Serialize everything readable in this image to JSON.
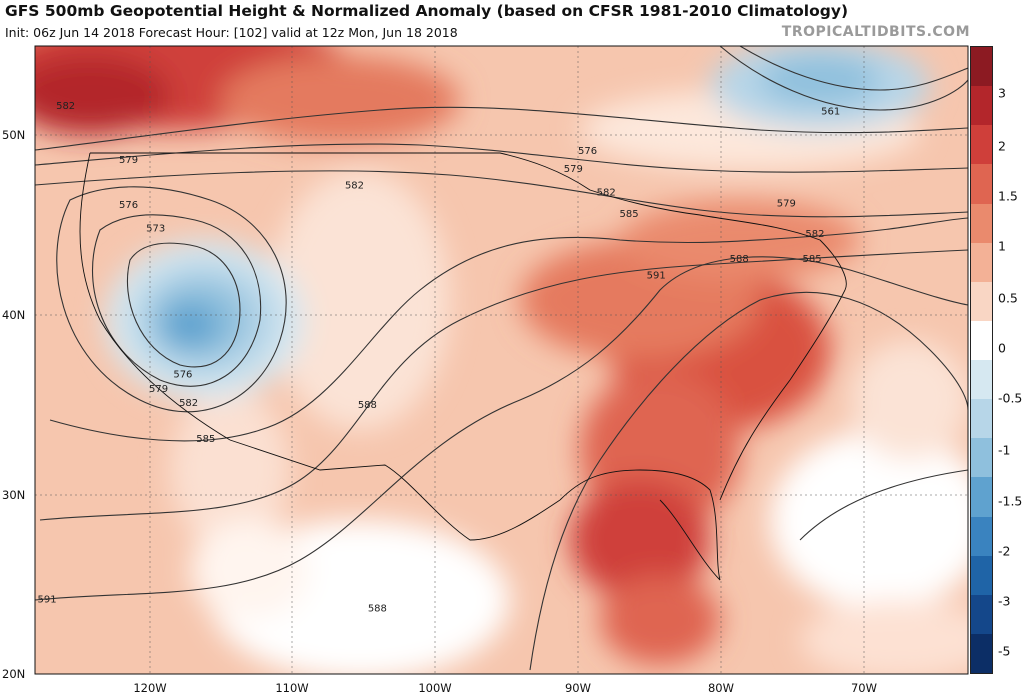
{
  "header": {
    "title": "GFS 500mb Geopotential Height & Normalized Anomaly (based on CFSR 1981-2010 Climatology)",
    "subtitle": "Init: 06z Jun 14 2018   Forecast Hour: [102]   valid at 12z Mon, Jun 18 2018",
    "brand": "TROPICALTIDBITS.COM"
  },
  "colorbar": {
    "ticks": [
      "3",
      "2",
      "1.5",
      "1",
      "0.5",
      "0",
      "-0.5",
      "-1",
      "-1.5",
      "-2",
      "-3",
      "-5"
    ],
    "colors": [
      "#8c1a22",
      "#b3262b",
      "#cf3f3a",
      "#df6551",
      "#ea8a6d",
      "#f3b196",
      "#f9d6c4",
      "#ffffff",
      "#d6e8f1",
      "#b7d6e8",
      "#8fc0dd",
      "#5fa2cf",
      "#3a83bf",
      "#1f64a7",
      "#14478a",
      "#0c2e66"
    ]
  },
  "axes": {
    "lat_labels": [
      "50N",
      "40N",
      "30N",
      "20N"
    ],
    "lon_labels": [
      "120W",
      "110W",
      "100W",
      "90W",
      "80W",
      "70W"
    ]
  },
  "contours": [
    {
      "label": "582",
      "lon": -125.9,
      "lat": 51.6
    },
    {
      "label": "579",
      "lon": -121.5,
      "lat": 48.6
    },
    {
      "label": "576",
      "lon": -121.5,
      "lat": 46.1
    },
    {
      "label": "573",
      "lon": -119.6,
      "lat": 44.8
    },
    {
      "label": "582",
      "lon": -105.7,
      "lat": 47.2
    },
    {
      "label": "576",
      "lon": -117.7,
      "lat": 36.7
    },
    {
      "label": "579",
      "lon": -119.4,
      "lat": 35.9
    },
    {
      "label": "582",
      "lon": -117.3,
      "lat": 35.1
    },
    {
      "label": "585",
      "lon": -116.1,
      "lat": 33.1
    },
    {
      "label": "588",
      "lon": -104.8,
      "lat": 35.0
    },
    {
      "label": "588",
      "lon": -104.1,
      "lat": 23.7
    },
    {
      "label": "591",
      "lon": -127.2,
      "lat": 24.2
    },
    {
      "label": "576",
      "lon": -89.4,
      "lat": 49.1
    },
    {
      "label": "579",
      "lon": -90.4,
      "lat": 48.1
    },
    {
      "label": "582",
      "lon": -88.1,
      "lat": 46.8
    },
    {
      "label": "585",
      "lon": -86.5,
      "lat": 45.6
    },
    {
      "label": "591",
      "lon": -84.6,
      "lat": 42.2
    },
    {
      "label": "588",
      "lon": -78.8,
      "lat": 43.1
    },
    {
      "label": "585",
      "lon": -73.7,
      "lat": 43.1
    },
    {
      "label": "582",
      "lon": -73.5,
      "lat": 44.5
    },
    {
      "label": "579",
      "lon": -75.5,
      "lat": 46.2
    },
    {
      "label": "561",
      "lon": -72.4,
      "lat": 51.3
    }
  ]
}
